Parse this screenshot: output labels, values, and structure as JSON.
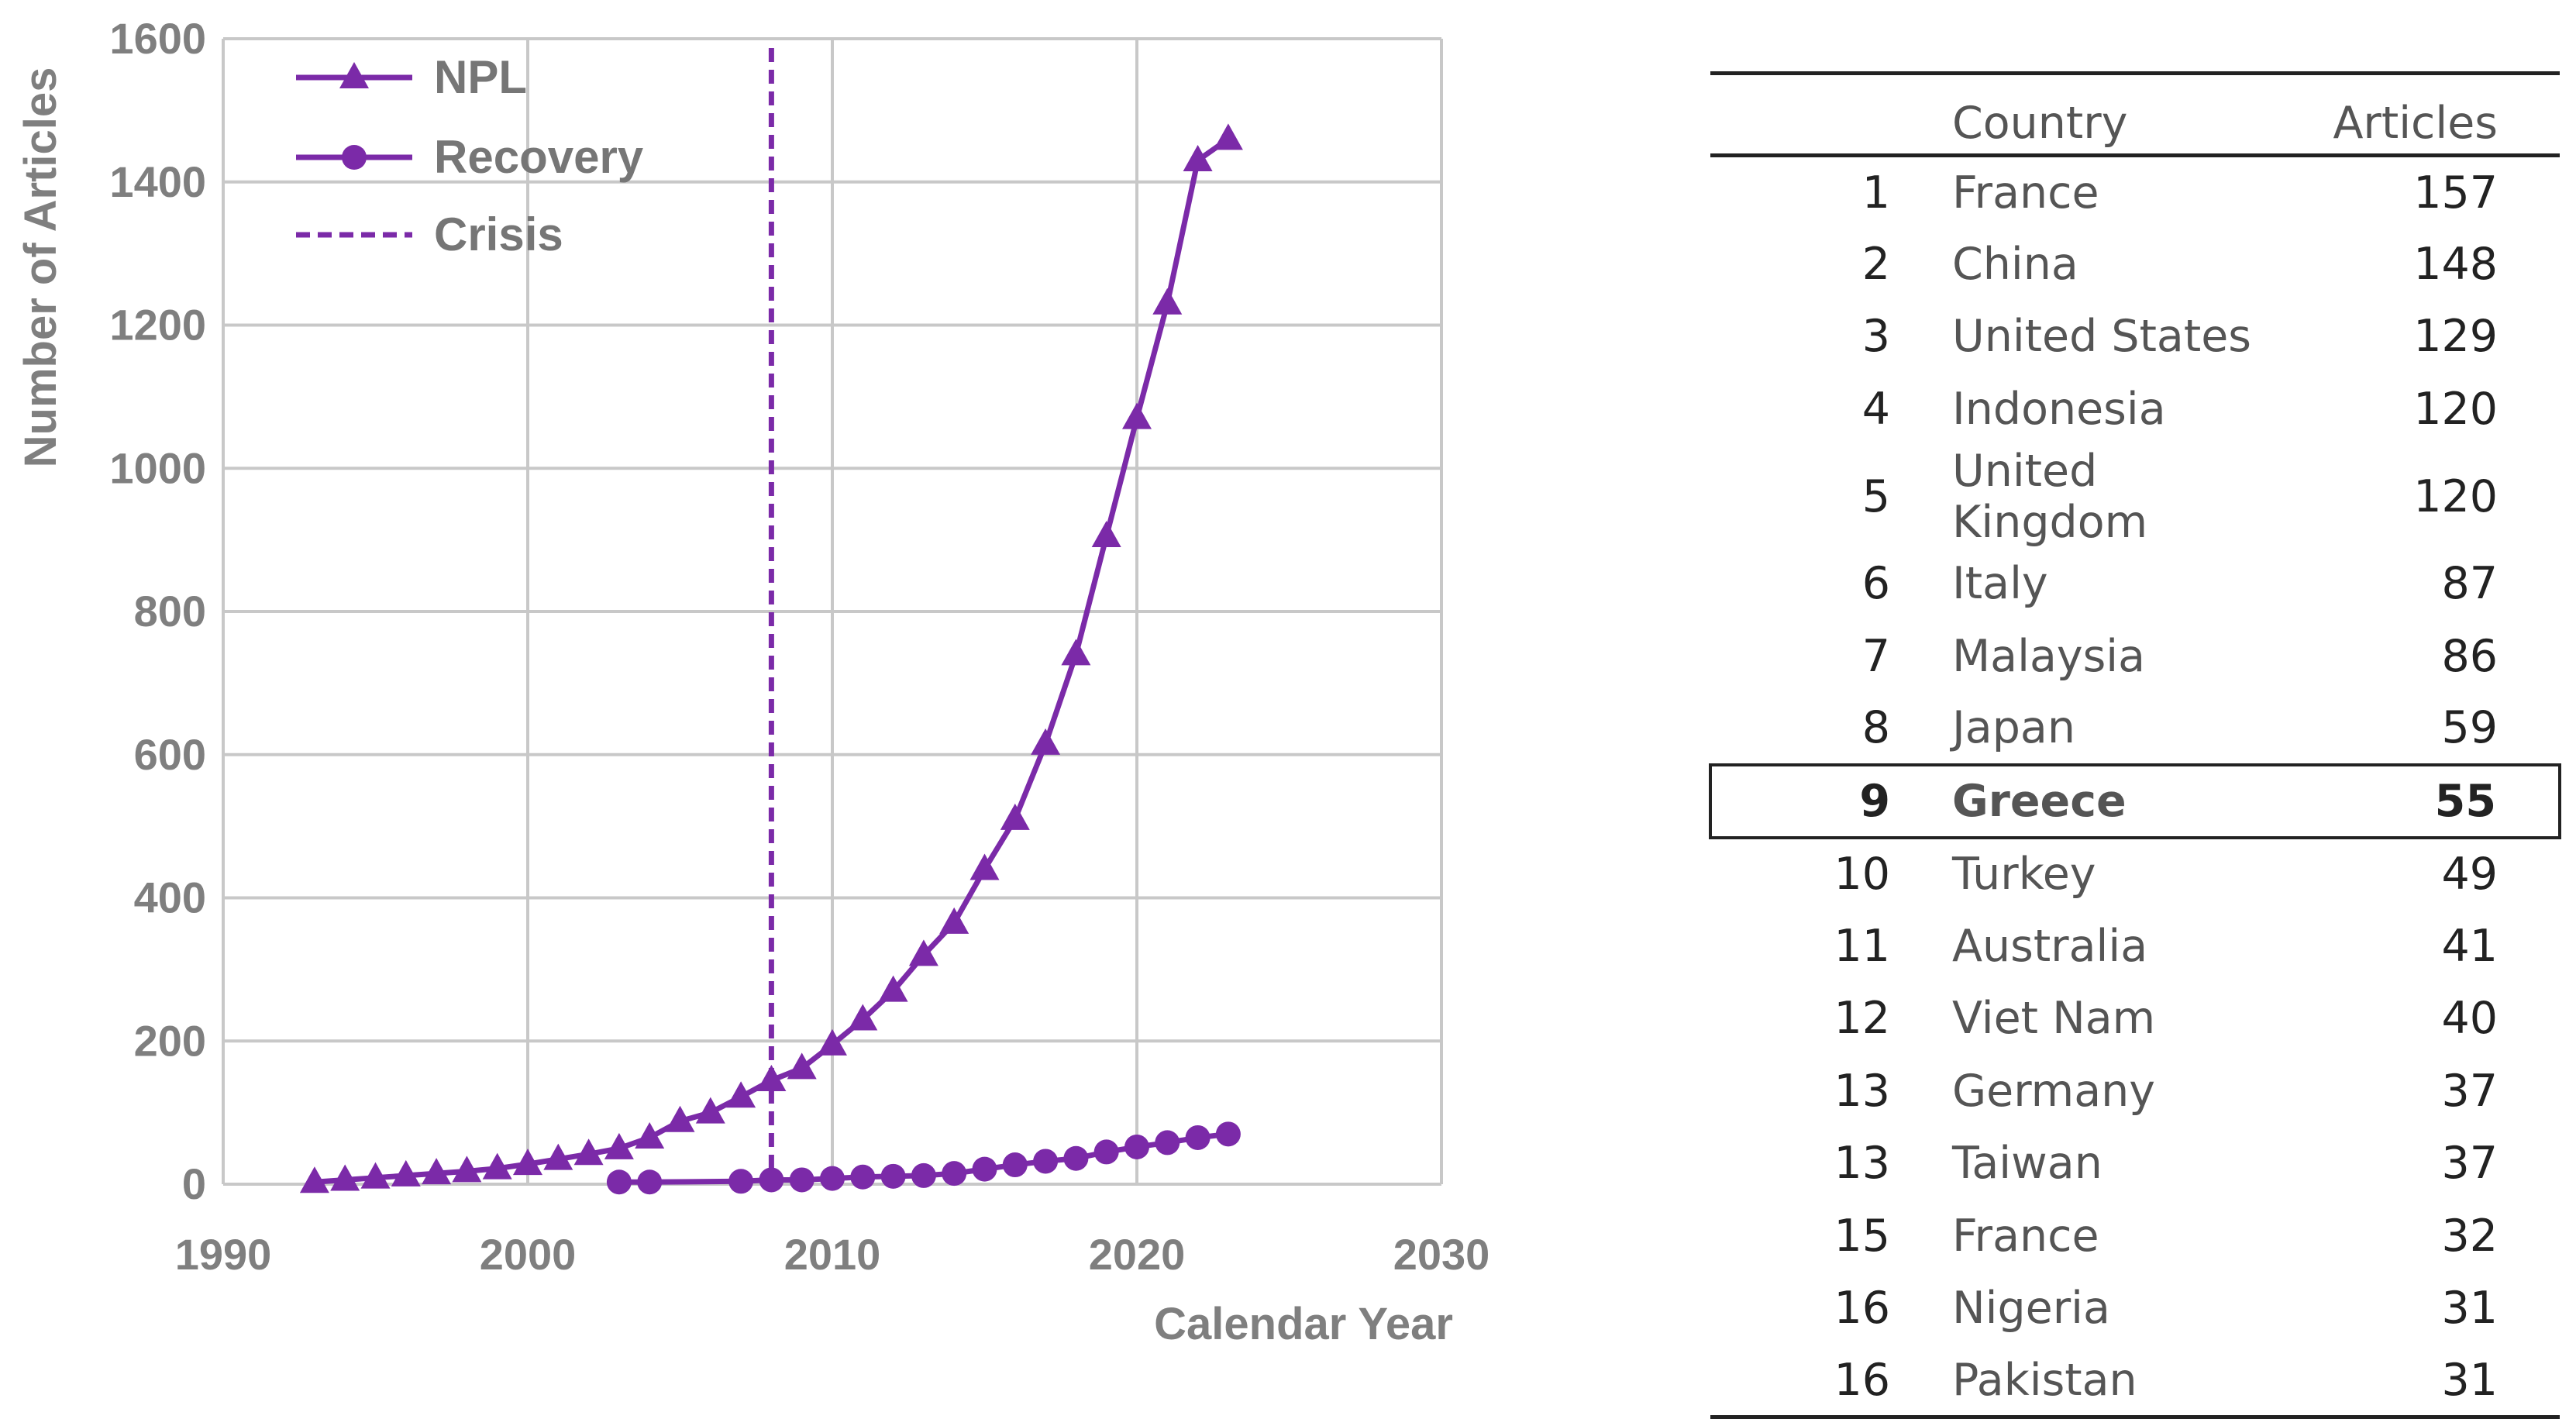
{
  "chart_data": {
    "type": "line",
    "xlabel": "Calendar Year",
    "ylabel": "Number of Articles",
    "xlim": [
      1990,
      2030
    ],
    "ylim": [
      0,
      1600
    ],
    "xticks": [
      1990,
      2000,
      2010,
      2020,
      2030
    ],
    "yticks": [
      0,
      200,
      400,
      600,
      800,
      1000,
      1200,
      1400,
      1600
    ],
    "grid": true,
    "legend_position": "top-left",
    "colors": {
      "series": "#7b2aa8",
      "grid": "#c8c8c8",
      "text": "#7f7f7f"
    },
    "series": [
      {
        "name": "NPL",
        "marker": "triangle",
        "x": [
          1993,
          1994,
          1995,
          1996,
          1997,
          1998,
          1999,
          2000,
          2001,
          2002,
          2003,
          2004,
          2005,
          2006,
          2007,
          2008,
          2009,
          2010,
          2011,
          2012,
          2013,
          2014,
          2015,
          2016,
          2017,
          2018,
          2019,
          2020,
          2021,
          2022,
          2023
        ],
        "y": [
          3,
          6,
          9,
          12,
          15,
          18,
          22,
          28,
          35,
          42,
          50,
          65,
          88,
          100,
          122,
          145,
          162,
          195,
          230,
          270,
          320,
          365,
          440,
          510,
          615,
          740,
          905,
          1070,
          1230,
          1430,
          1460
        ]
      },
      {
        "name": "Recovery",
        "marker": "circle",
        "x": [
          2003,
          2004,
          2007,
          2008,
          2009,
          2010,
          2011,
          2012,
          2013,
          2014,
          2015,
          2016,
          2017,
          2018,
          2019,
          2020,
          2021,
          2022,
          2023
        ],
        "y": [
          3,
          3,
          4,
          6,
          6,
          8,
          10,
          11,
          12,
          15,
          21,
          27,
          32,
          36,
          45,
          52,
          58,
          65,
          70
        ]
      }
    ],
    "reference_lines": [
      {
        "name": "Crisis",
        "x": 2008,
        "style": "dashed"
      }
    ]
  },
  "table": {
    "headers": {
      "rank": "",
      "country": "Country",
      "articles": "Articles"
    },
    "rows": [
      {
        "rank": "1",
        "country": "France",
        "articles": "157"
      },
      {
        "rank": "2",
        "country": "China",
        "articles": "148"
      },
      {
        "rank": "3",
        "country": "United States",
        "articles": "129"
      },
      {
        "rank": "4",
        "country": "Indonesia",
        "articles": "120"
      },
      {
        "rank": "5",
        "country": "United Kingdom",
        "articles": "120"
      },
      {
        "rank": "6",
        "country": "Italy",
        "articles": "87"
      },
      {
        "rank": "7",
        "country": "Malaysia",
        "articles": "86"
      },
      {
        "rank": "8",
        "country": "Japan",
        "articles": "59"
      },
      {
        "rank": "9",
        "country": "Greece",
        "articles": "55",
        "highlighted": true
      },
      {
        "rank": "10",
        "country": "Turkey",
        "articles": "49"
      },
      {
        "rank": "11",
        "country": "Australia",
        "articles": "41"
      },
      {
        "rank": "12",
        "country": "Viet Nam",
        "articles": "40"
      },
      {
        "rank": "13",
        "country": "Germany",
        "articles": "37"
      },
      {
        "rank": "13",
        "country": "Taiwan",
        "articles": "37"
      },
      {
        "rank": "15",
        "country": "France",
        "articles": "32"
      },
      {
        "rank": "16",
        "country": "Nigeria",
        "articles": "31"
      },
      {
        "rank": "16",
        "country": "Pakistan",
        "articles": "31"
      }
    ]
  }
}
